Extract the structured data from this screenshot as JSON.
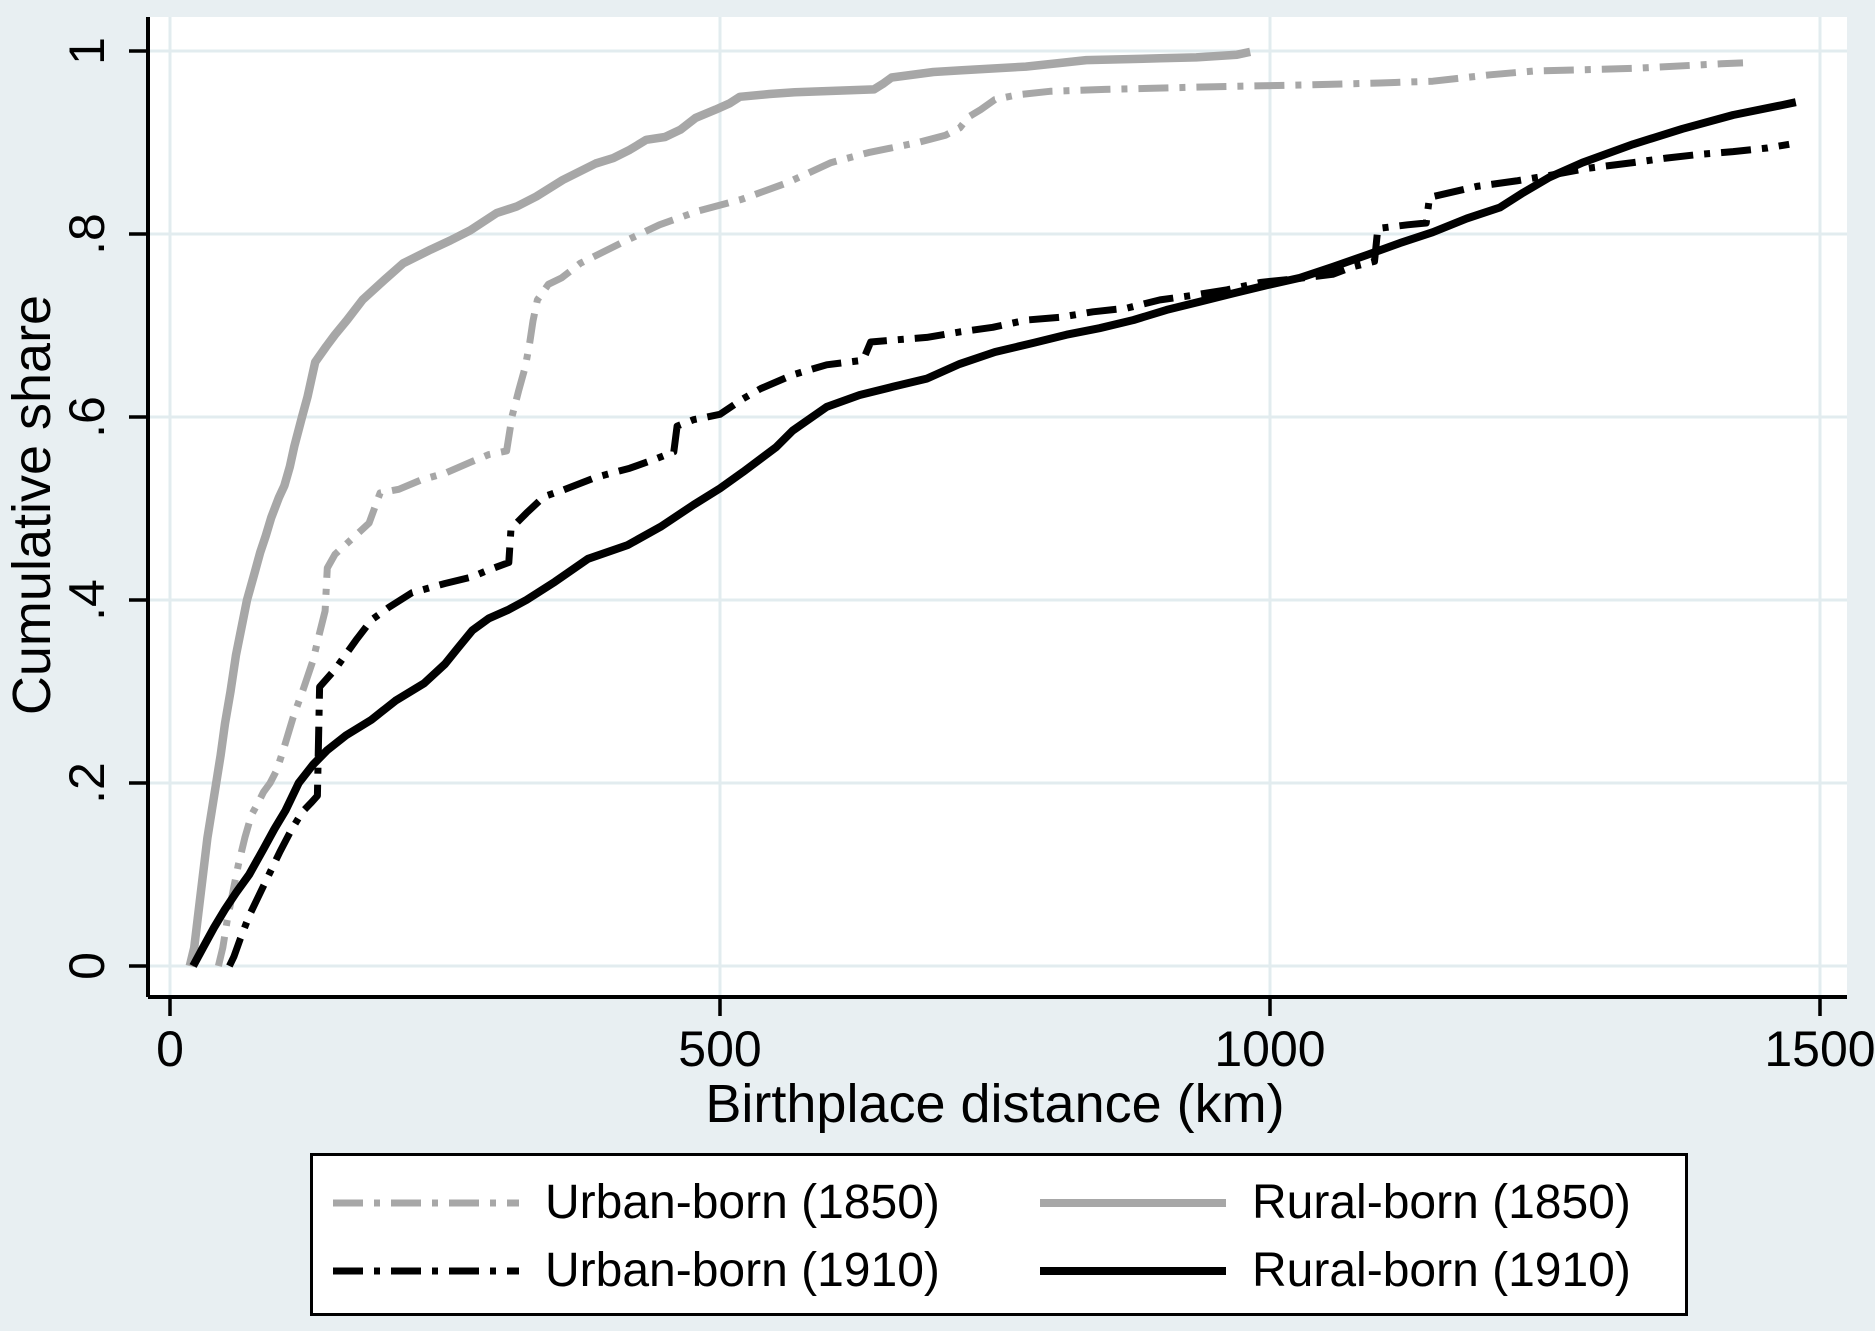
{
  "figure": {
    "background_color": "#e8eff2",
    "plot_background_color": "#ffffff",
    "grid_color": "#e2ecef",
    "axis_color": "#000000",
    "gray_accent": "#a7a7a7",
    "black_accent": "#000000",
    "legend_background": "#ffffff",
    "legend_border": "#000000"
  },
  "chart_data": {
    "type": "line",
    "title": "",
    "xlabel": "Birthplace distance (km)",
    "ylabel": "Cumulative share",
    "xlim": [
      0,
      1525
    ],
    "ylim": [
      0,
      1.04
    ],
    "grid": true,
    "legend_position": "bottom",
    "x_ticks": {
      "values": [
        0,
        500,
        1000,
        1500
      ],
      "labels": [
        "0",
        "500",
        "1000",
        "1500"
      ]
    },
    "y_ticks": {
      "values": [
        0,
        0.2,
        0.4,
        0.6,
        0.8,
        1
      ],
      "labels": [
        "0",
        ".2",
        ".4",
        ".6",
        ".8",
        "1"
      ]
    },
    "series": [
      {
        "name": "Urban-born (1850)",
        "color": "#a7a7a7",
        "style": "dashdot",
        "width": 7,
        "points": [
          [
            44,
            0
          ],
          [
            48,
            0.02
          ],
          [
            52,
            0.05
          ],
          [
            57,
            0.08
          ],
          [
            62,
            0.11
          ],
          [
            68,
            0.14
          ],
          [
            74,
            0.165
          ],
          [
            80,
            0.178
          ],
          [
            85,
            0.19
          ],
          [
            91,
            0.2
          ],
          [
            97,
            0.214
          ],
          [
            103,
            0.236
          ],
          [
            112,
            0.272
          ],
          [
            121,
            0.302
          ],
          [
            130,
            0.334
          ],
          [
            136,
            0.364
          ],
          [
            141,
            0.388
          ],
          [
            143,
            0.435
          ],
          [
            150,
            0.45
          ],
          [
            161,
            0.462
          ],
          [
            181,
            0.484
          ],
          [
            191,
            0.517
          ],
          [
            208,
            0.521
          ],
          [
            228,
            0.531
          ],
          [
            251,
            0.539
          ],
          [
            274,
            0.551
          ],
          [
            290,
            0.559
          ],
          [
            306,
            0.563
          ],
          [
            311,
            0.601
          ],
          [
            317,
            0.629
          ],
          [
            323,
            0.655
          ],
          [
            327,
            0.681
          ],
          [
            330,
            0.705
          ],
          [
            334,
            0.728
          ],
          [
            344,
            0.745
          ],
          [
            356,
            0.752
          ],
          [
            373,
            0.768
          ],
          [
            410,
            0.79
          ],
          [
            445,
            0.81
          ],
          [
            480,
            0.825
          ],
          [
            520,
            0.838
          ],
          [
            561,
            0.856
          ],
          [
            601,
            0.878
          ],
          [
            635,
            0.889
          ],
          [
            680,
            0.9
          ],
          [
            705,
            0.908
          ],
          [
            718,
            0.916
          ],
          [
            726,
            0.928
          ],
          [
            737,
            0.936
          ],
          [
            750,
            0.947
          ],
          [
            770,
            0.952
          ],
          [
            800,
            0.956
          ],
          [
            850,
            0.958
          ],
          [
            950,
            0.961
          ],
          [
            1034,
            0.963
          ],
          [
            1100,
            0.965
          ],
          [
            1148,
            0.967
          ],
          [
            1200,
            0.974
          ],
          [
            1239,
            0.978
          ],
          [
            1330,
            0.981
          ],
          [
            1410,
            0.986
          ],
          [
            1430,
            0.987
          ]
        ]
      },
      {
        "name": "Rural-born (1850)",
        "color": "#a7a7a7",
        "style": "solid",
        "width": 8.5,
        "points": [
          [
            18,
            0
          ],
          [
            22,
            0.02
          ],
          [
            25,
            0.05
          ],
          [
            28,
            0.08
          ],
          [
            31,
            0.11
          ],
          [
            34,
            0.14
          ],
          [
            38,
            0.17
          ],
          [
            42,
            0.2
          ],
          [
            46,
            0.23
          ],
          [
            50,
            0.265
          ],
          [
            55,
            0.3
          ],
          [
            60,
            0.34
          ],
          [
            65,
            0.37
          ],
          [
            70,
            0.4
          ],
          [
            77,
            0.43
          ],
          [
            82,
            0.452
          ],
          [
            87,
            0.47
          ],
          [
            92,
            0.49
          ],
          [
            99,
            0.512
          ],
          [
            104,
            0.525
          ],
          [
            109,
            0.546
          ],
          [
            113,
            0.568
          ],
          [
            120,
            0.6
          ],
          [
            125,
            0.622
          ],
          [
            132,
            0.66
          ],
          [
            142,
            0.677
          ],
          [
            150,
            0.69
          ],
          [
            161,
            0.706
          ],
          [
            175,
            0.728
          ],
          [
            195,
            0.75
          ],
          [
            212,
            0.768
          ],
          [
            237,
            0.783
          ],
          [
            255,
            0.793
          ],
          [
            273,
            0.804
          ],
          [
            297,
            0.823
          ],
          [
            315,
            0.83
          ],
          [
            333,
            0.841
          ],
          [
            357,
            0.859
          ],
          [
            387,
            0.877
          ],
          [
            403,
            0.883
          ],
          [
            418,
            0.892
          ],
          [
            433,
            0.903
          ],
          [
            450,
            0.906
          ],
          [
            464,
            0.914
          ],
          [
            478,
            0.927
          ],
          [
            496,
            0.936
          ],
          [
            509,
            0.943
          ],
          [
            518,
            0.95
          ],
          [
            545,
            0.953
          ],
          [
            568,
            0.955
          ],
          [
            640,
            0.958
          ],
          [
            648,
            0.964
          ],
          [
            656,
            0.971
          ],
          [
            694,
            0.977
          ],
          [
            720,
            0.979
          ],
          [
            778,
            0.983
          ],
          [
            810,
            0.987
          ],
          [
            833,
            0.99
          ],
          [
            900,
            0.992
          ],
          [
            933,
            0.993
          ],
          [
            970,
            0.996
          ],
          [
            982,
            0.999
          ]
        ]
      },
      {
        "name": "Urban-born (1910)",
        "color": "#000000",
        "style": "dashdot",
        "width": 7,
        "points": [
          [
            54,
            0
          ],
          [
            58,
            0.01
          ],
          [
            64,
            0.03
          ],
          [
            72,
            0.055
          ],
          [
            80,
            0.075
          ],
          [
            90,
            0.1
          ],
          [
            100,
            0.125
          ],
          [
            110,
            0.148
          ],
          [
            120,
            0.168
          ],
          [
            128,
            0.178
          ],
          [
            134,
            0.186
          ],
          [
            136,
            0.305
          ],
          [
            150,
            0.324
          ],
          [
            169,
            0.356
          ],
          [
            183,
            0.378
          ],
          [
            199,
            0.392
          ],
          [
            220,
            0.408
          ],
          [
            250,
            0.418
          ],
          [
            274,
            0.425
          ],
          [
            290,
            0.433
          ],
          [
            308,
            0.441
          ],
          [
            310,
            0.478
          ],
          [
            324,
            0.495
          ],
          [
            340,
            0.513
          ],
          [
            357,
            0.52
          ],
          [
            387,
            0.534
          ],
          [
            418,
            0.544
          ],
          [
            439,
            0.553
          ],
          [
            458,
            0.562
          ],
          [
            461,
            0.59
          ],
          [
            476,
            0.597
          ],
          [
            500,
            0.603
          ],
          [
            521,
            0.62
          ],
          [
            537,
            0.631
          ],
          [
            566,
            0.646
          ],
          [
            597,
            0.657
          ],
          [
            630,
            0.662
          ],
          [
            637,
            0.682
          ],
          [
            657,
            0.684
          ],
          [
            688,
            0.687
          ],
          [
            718,
            0.693
          ],
          [
            748,
            0.698
          ],
          [
            779,
            0.706
          ],
          [
            809,
            0.709
          ],
          [
            839,
            0.715
          ],
          [
            870,
            0.719
          ],
          [
            900,
            0.728
          ],
          [
            930,
            0.733
          ],
          [
            961,
            0.739
          ],
          [
            991,
            0.747
          ],
          [
            1030,
            0.752
          ],
          [
            1057,
            0.756
          ],
          [
            1075,
            0.764
          ],
          [
            1095,
            0.77
          ],
          [
            1098,
            0.806
          ],
          [
            1125,
            0.81
          ],
          [
            1142,
            0.812
          ],
          [
            1145,
            0.84
          ],
          [
            1188,
            0.852
          ],
          [
            1224,
            0.858
          ],
          [
            1254,
            0.864
          ],
          [
            1290,
            0.872
          ],
          [
            1330,
            0.878
          ],
          [
            1360,
            0.883
          ],
          [
            1390,
            0.887
          ],
          [
            1421,
            0.89
          ],
          [
            1452,
            0.894
          ],
          [
            1472,
            0.898
          ]
        ]
      },
      {
        "name": "Rural-born (1910)",
        "color": "#000000",
        "style": "solid",
        "width": 8,
        "points": [
          [
            21,
            0
          ],
          [
            30,
            0.02
          ],
          [
            40,
            0.042
          ],
          [
            50,
            0.062
          ],
          [
            60,
            0.08
          ],
          [
            72,
            0.1
          ],
          [
            85,
            0.128
          ],
          [
            95,
            0.15
          ],
          [
            105,
            0.17
          ],
          [
            117,
            0.2
          ],
          [
            130,
            0.22
          ],
          [
            143,
            0.236
          ],
          [
            160,
            0.252
          ],
          [
            183,
            0.269
          ],
          [
            205,
            0.29
          ],
          [
            231,
            0.309
          ],
          [
            250,
            0.33
          ],
          [
            262,
            0.348
          ],
          [
            275,
            0.367
          ],
          [
            290,
            0.38
          ],
          [
            307,
            0.389
          ],
          [
            324,
            0.4
          ],
          [
            350,
            0.42
          ],
          [
            380,
            0.445
          ],
          [
            416,
            0.46
          ],
          [
            446,
            0.48
          ],
          [
            476,
            0.504
          ],
          [
            500,
            0.522
          ],
          [
            521,
            0.54
          ],
          [
            551,
            0.567
          ],
          [
            566,
            0.585
          ],
          [
            597,
            0.611
          ],
          [
            627,
            0.624
          ],
          [
            657,
            0.633
          ],
          [
            688,
            0.642
          ],
          [
            718,
            0.658
          ],
          [
            750,
            0.671
          ],
          [
            785,
            0.681
          ],
          [
            815,
            0.69
          ],
          [
            845,
            0.697
          ],
          [
            876,
            0.706
          ],
          [
            906,
            0.717
          ],
          [
            936,
            0.726
          ],
          [
            966,
            0.735
          ],
          [
            997,
            0.744
          ],
          [
            1027,
            0.752
          ],
          [
            1057,
            0.764
          ],
          [
            1088,
            0.777
          ],
          [
            1118,
            0.79
          ],
          [
            1148,
            0.802
          ],
          [
            1179,
            0.817
          ],
          [
            1209,
            0.829
          ],
          [
            1230,
            0.845
          ],
          [
            1254,
            0.862
          ],
          [
            1284,
            0.878
          ],
          [
            1330,
            0.898
          ],
          [
            1375,
            0.915
          ],
          [
            1421,
            0.93
          ],
          [
            1466,
            0.941
          ],
          [
            1478,
            0.944
          ]
        ]
      }
    ]
  },
  "legend": {
    "rows": 2,
    "columns": 2,
    "order": [
      0,
      1,
      2,
      3
    ]
  }
}
